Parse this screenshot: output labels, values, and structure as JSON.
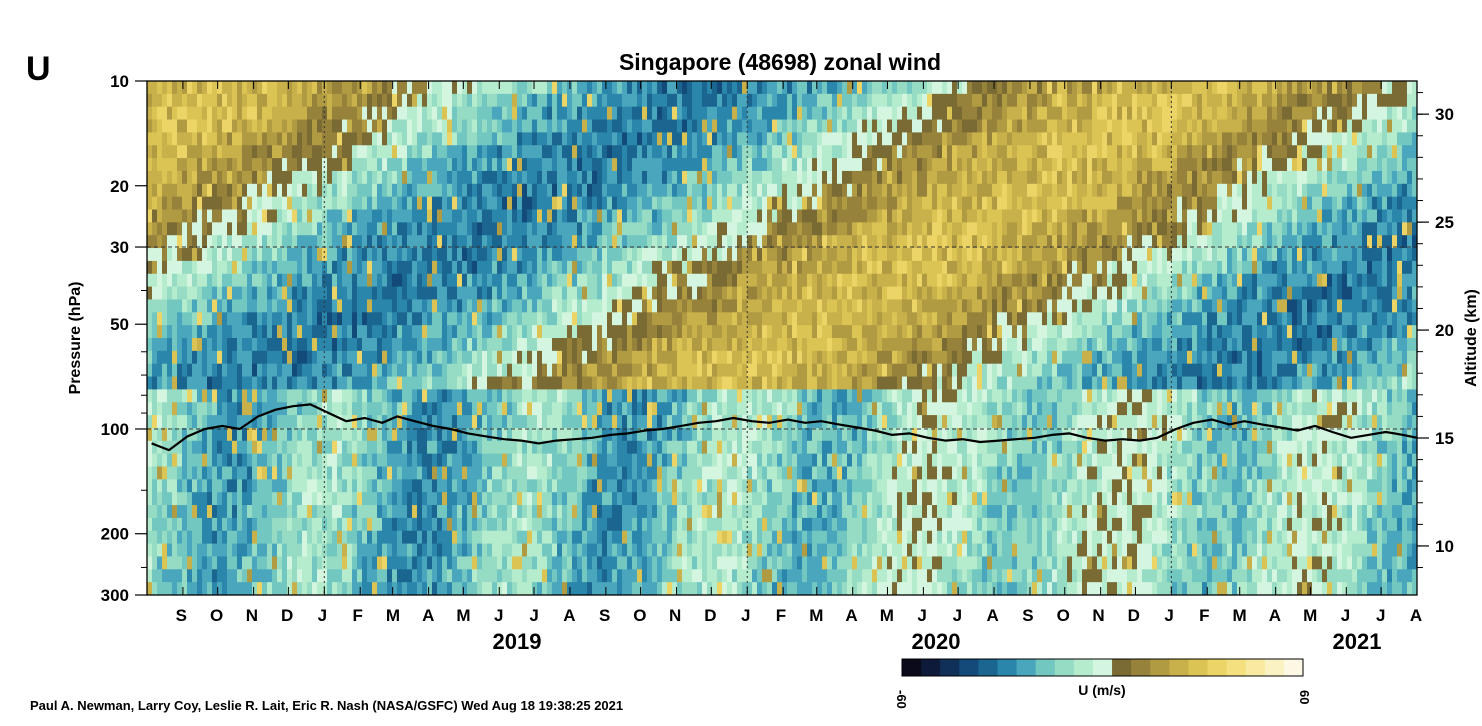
{
  "chart_data": {
    "type": "heatmap",
    "panel_letter": "U",
    "title": "Singapore (48698) zonal wind",
    "ylabel_left": "Pressure (hPa)",
    "ylabel_right": "Altitude (km)",
    "y_scale": "log",
    "ylim_hpa": [
      300,
      10
    ],
    "pressure_ticks": [
      "10",
      "20",
      "30",
      "50",
      "100",
      "200",
      "300"
    ],
    "altitude_ticks": [
      "30",
      "25",
      "20",
      "15",
      "10"
    ],
    "x_range": [
      "2018-08",
      "2021-08"
    ],
    "month_ticks": [
      "S",
      "O",
      "N",
      "D",
      "J",
      "F",
      "M",
      "A",
      "M",
      "J",
      "J",
      "A",
      "S",
      "O",
      "N",
      "D",
      "J",
      "F",
      "M",
      "A",
      "M",
      "J",
      "J",
      "A",
      "S",
      "O",
      "N",
      "D",
      "J",
      "F",
      "M",
      "A",
      "M",
      "J",
      "J",
      "A"
    ],
    "year_labels": [
      "2019",
      "2020",
      "2021"
    ],
    "dashed_reference_levels_hpa": [
      30,
      100
    ],
    "colorbar": {
      "label": "U (m/s)",
      "min_label": "-60",
      "max_label": "60",
      "colors": [
        "#0a0a1a",
        "#0e1a3a",
        "#10305a",
        "#124a7a",
        "#1a6690",
        "#2a86aa",
        "#4aa6bc",
        "#72c8c0",
        "#96dcc4",
        "#b6ecce",
        "#d4f6e0",
        "#7a6a34",
        "#96823a",
        "#b09a42",
        "#c8b04a",
        "#dcc454",
        "#ecd466",
        "#f4e07e",
        "#f8eaa0",
        "#fbf2c4",
        "#fdf8e4"
      ]
    },
    "tropopause_series_name": "",
    "tropopause_pressure_hpa": [
      {
        "x": "2018-08-05",
        "y": 110
      },
      {
        "x": "2018-08-20",
        "y": 115
      },
      {
        "x": "2018-09-05",
        "y": 105
      },
      {
        "x": "2018-09-20",
        "y": 100
      },
      {
        "x": "2018-10-05",
        "y": 98
      },
      {
        "x": "2018-10-20",
        "y": 100
      },
      {
        "x": "2018-11-05",
        "y": 92
      },
      {
        "x": "2018-11-20",
        "y": 88
      },
      {
        "x": "2018-12-05",
        "y": 86
      },
      {
        "x": "2018-12-20",
        "y": 85
      },
      {
        "x": "2019-01-05",
        "y": 90
      },
      {
        "x": "2019-01-20",
        "y": 95
      },
      {
        "x": "2019-02-05",
        "y": 93
      },
      {
        "x": "2019-02-20",
        "y": 96
      },
      {
        "x": "2019-03-05",
        "y": 92
      },
      {
        "x": "2019-03-20",
        "y": 95
      },
      {
        "x": "2019-04-05",
        "y": 98
      },
      {
        "x": "2019-04-20",
        "y": 100
      },
      {
        "x": "2019-05-05",
        "y": 103
      },
      {
        "x": "2019-05-20",
        "y": 105
      },
      {
        "x": "2019-06-05",
        "y": 107
      },
      {
        "x": "2019-06-20",
        "y": 108
      },
      {
        "x": "2019-07-05",
        "y": 110
      },
      {
        "x": "2019-07-20",
        "y": 108
      },
      {
        "x": "2019-08-05",
        "y": 107
      },
      {
        "x": "2019-08-20",
        "y": 106
      },
      {
        "x": "2019-09-05",
        "y": 104
      },
      {
        "x": "2019-09-20",
        "y": 103
      },
      {
        "x": "2019-10-05",
        "y": 101
      },
      {
        "x": "2019-10-20",
        "y": 100
      },
      {
        "x": "2019-11-05",
        "y": 98
      },
      {
        "x": "2019-11-20",
        "y": 96
      },
      {
        "x": "2019-12-05",
        "y": 95
      },
      {
        "x": "2019-12-20",
        "y": 93
      },
      {
        "x": "2020-01-05",
        "y": 95
      },
      {
        "x": "2020-01-20",
        "y": 96
      },
      {
        "x": "2020-02-05",
        "y": 94
      },
      {
        "x": "2020-02-20",
        "y": 96
      },
      {
        "x": "2020-03-05",
        "y": 95
      },
      {
        "x": "2020-03-20",
        "y": 97
      },
      {
        "x": "2020-04-05",
        "y": 99
      },
      {
        "x": "2020-04-20",
        "y": 101
      },
      {
        "x": "2020-05-05",
        "y": 104
      },
      {
        "x": "2020-05-20",
        "y": 103
      },
      {
        "x": "2020-06-05",
        "y": 106
      },
      {
        "x": "2020-06-20",
        "y": 108
      },
      {
        "x": "2020-07-05",
        "y": 107
      },
      {
        "x": "2020-07-20",
        "y": 109
      },
      {
        "x": "2020-08-05",
        "y": 108
      },
      {
        "x": "2020-08-20",
        "y": 107
      },
      {
        "x": "2020-09-05",
        "y": 106
      },
      {
        "x": "2020-09-20",
        "y": 104
      },
      {
        "x": "2020-10-05",
        "y": 103
      },
      {
        "x": "2020-10-20",
        "y": 106
      },
      {
        "x": "2020-11-05",
        "y": 108
      },
      {
        "x": "2020-11-20",
        "y": 107
      },
      {
        "x": "2020-12-05",
        "y": 108
      },
      {
        "x": "2020-12-20",
        "y": 106
      },
      {
        "x": "2021-01-05",
        "y": 100
      },
      {
        "x": "2021-01-20",
        "y": 96
      },
      {
        "x": "2021-02-05",
        "y": 94
      },
      {
        "x": "2021-02-20",
        "y": 97
      },
      {
        "x": "2021-03-05",
        "y": 95
      },
      {
        "x": "2021-03-20",
        "y": 97
      },
      {
        "x": "2021-04-05",
        "y": 99
      },
      {
        "x": "2021-04-20",
        "y": 101
      },
      {
        "x": "2021-05-05",
        "y": 98
      },
      {
        "x": "2021-05-20",
        "y": 102
      },
      {
        "x": "2021-06-05",
        "y": 106
      },
      {
        "x": "2021-06-20",
        "y": 104
      },
      {
        "x": "2021-07-05",
        "y": 102
      },
      {
        "x": "2021-07-20",
        "y": 104
      },
      {
        "x": "2021-08-01",
        "y": 106
      }
    ]
  },
  "credit": "Paul A. Newman, Larry Coy, Leslie R. Lait, Eric R. Nash (NASA/GSFC) Wed Aug 18 19:38:25 2021"
}
